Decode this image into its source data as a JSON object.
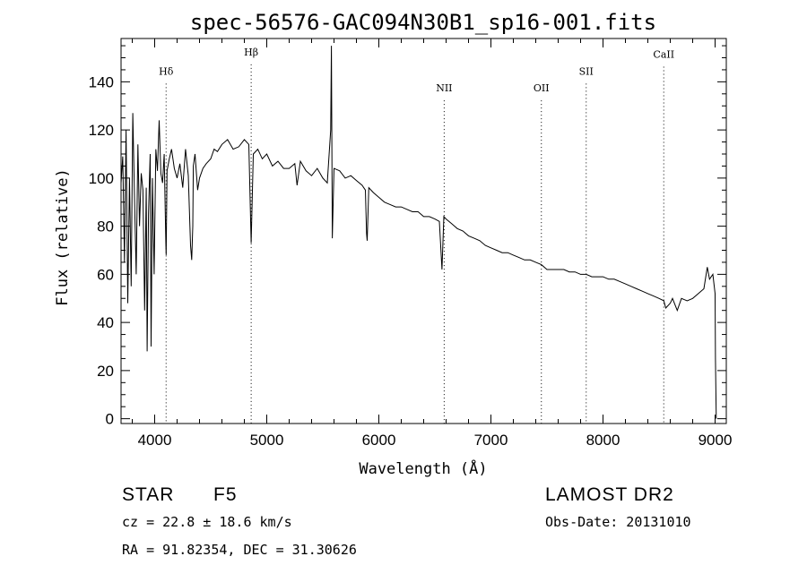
{
  "chart_data": {
    "type": "line",
    "title": "spec-56576-GAC094N30B1_sp16-001.fits",
    "xlabel": "Wavelength (Å)",
    "ylabel": "Flux (relative)",
    "xlim": [
      3700,
      9100
    ],
    "ylim": [
      -2,
      158
    ],
    "xticks": [
      4000,
      5000,
      6000,
      7000,
      8000,
      9000
    ],
    "yticks": [
      0,
      20,
      40,
      60,
      80,
      100,
      120,
      140
    ],
    "grid": false,
    "series": [
      {
        "x": [
          3700,
          3715,
          3730,
          3745,
          3760,
          3775,
          3790,
          3805,
          3820,
          3835,
          3850,
          3865,
          3880,
          3895,
          3910,
          3925,
          3933,
          3945,
          3960,
          3968,
          3980,
          3995,
          4010,
          4025,
          4040,
          4055,
          4070,
          4085,
          4100,
          4102,
          4110,
          4130,
          4150,
          4175,
          4200,
          4225,
          4250,
          4275,
          4300,
          4320,
          4330,
          4340,
          4345,
          4360,
          4383,
          4400,
          4430,
          4460,
          4500,
          4530,
          4560,
          4600,
          4650,
          4700,
          4750,
          4800,
          4840,
          4861,
          4880,
          4920,
          4960,
          5000,
          5050,
          5100,
          5150,
          5200,
          5250,
          5270,
          5300,
          5350,
          5400,
          5450,
          5500,
          5540,
          5570,
          5577,
          5585,
          5600,
          5650,
          5700,
          5750,
          5800,
          5850,
          5880,
          5890,
          5896,
          5910,
          5950,
          6000,
          6050,
          6100,
          6150,
          6200,
          6250,
          6300,
          6350,
          6400,
          6450,
          6500,
          6540,
          6563,
          6580,
          6600,
          6650,
          6700,
          6750,
          6800,
          6850,
          6900,
          6950,
          7000,
          7050,
          7100,
          7150,
          7200,
          7250,
          7300,
          7350,
          7400,
          7450,
          7500,
          7550,
          7600,
          7650,
          7700,
          7750,
          7800,
          7850,
          7900,
          7950,
          8000,
          8050,
          8100,
          8150,
          8200,
          8250,
          8300,
          8350,
          8400,
          8450,
          8500,
          8542,
          8560,
          8600,
          8620,
          8662,
          8700,
          8750,
          8800,
          8850,
          8900,
          8930,
          8950,
          8980,
          9000,
          9003,
          9010
        ],
        "values": [
          98,
          109,
          65,
          120,
          48,
          100,
          55,
          127,
          92,
          60,
          114,
          80,
          102,
          95,
          45,
          96,
          28,
          85,
          110,
          30,
          100,
          60,
          112,
          103,
          124,
          102,
          98,
          110,
          72,
          68,
          103,
          108,
          112,
          104,
          100,
          106,
          96,
          112,
          101,
          72,
          66,
          80,
          105,
          110,
          95,
          100,
          104,
          106,
          108,
          112,
          111,
          114,
          116,
          112,
          113,
          116,
          114,
          73,
          110,
          112,
          108,
          110,
          105,
          107,
          104,
          104,
          106,
          97,
          107,
          103,
          101,
          104,
          100,
          98,
          120,
          155,
          75,
          104,
          103,
          100,
          101,
          99,
          97,
          95,
          77,
          74,
          96,
          94,
          92,
          90,
          89,
          88,
          88,
          87,
          86,
          86,
          84,
          84,
          83,
          82,
          62,
          84,
          83,
          81,
          79,
          78,
          76,
          75,
          74,
          72,
          71,
          70,
          69,
          69,
          68,
          67,
          66,
          66,
          65,
          64,
          62,
          62,
          62,
          62,
          61,
          61,
          60,
          60,
          59,
          59,
          59,
          58,
          58,
          57,
          56,
          55,
          54,
          53,
          52,
          51,
          50,
          49,
          46,
          48,
          50,
          45,
          50,
          49,
          50,
          52,
          54,
          63,
          58,
          60,
          52,
          25,
          0
        ]
      }
    ],
    "annotations": [
      {
        "label": "Hδ",
        "x": 4102,
        "y_level": 143
      },
      {
        "label": "Hβ",
        "x": 4861,
        "y_level": 151
      },
      {
        "label": "NII",
        "x": 6583,
        "y_level": 136
      },
      {
        "label": "OII",
        "x": 7450,
        "y_level": 136
      },
      {
        "label": "SII",
        "x": 7850,
        "y_level": 143
      },
      {
        "label": "CaII",
        "x": 8542,
        "y_level": 150
      }
    ]
  },
  "info": {
    "class_label": "STAR",
    "subclass": "F5",
    "cz": "cz = 22.8 ± 18.6 km/s",
    "radec": "RA =  91.82354, DEC =  31.30626",
    "survey": "LAMOST DR2",
    "obs_date": "Obs-Date: 20131010"
  }
}
